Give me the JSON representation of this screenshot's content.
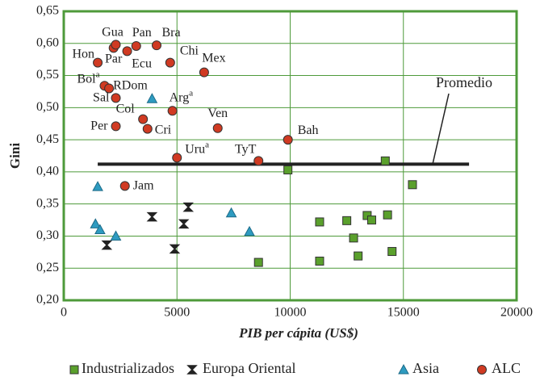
{
  "chart_data": {
    "type": "scatter",
    "xlabel": "PIB per cápita (US$)",
    "ylabel": "Gini",
    "xlim": [
      0,
      20000
    ],
    "ylim": [
      0.2,
      0.65
    ],
    "xticks": [
      0,
      5000,
      10000,
      15000,
      20000
    ],
    "yticks": [
      {
        "value": 0.2,
        "label": "0,20"
      },
      {
        "value": 0.25,
        "label": "0,25"
      },
      {
        "value": 0.3,
        "label": "0,30"
      },
      {
        "value": 0.35,
        "label": "0,35"
      },
      {
        "value": 0.4,
        "label": "0,40"
      },
      {
        "value": 0.45,
        "label": "0,45"
      },
      {
        "value": 0.5,
        "label": "0,50"
      },
      {
        "value": 0.55,
        "label": "0,55"
      },
      {
        "value": 0.6,
        "label": "0,60"
      },
      {
        "value": 0.65,
        "label": "0,65"
      }
    ],
    "grid": true,
    "legend": "bottom",
    "average": {
      "label": "Promedio",
      "value": 0.412,
      "x": [
        1500,
        17900
      ]
    },
    "series": [
      {
        "name": "Industrializados",
        "marker": "square",
        "color": "#5aa02c",
        "x": [
          9900,
          14200,
          15400,
          8600,
          11300,
          12500,
          13400,
          13600,
          12800,
          14300,
          13000,
          11300,
          14500
        ],
        "values": [
          0.403,
          0.417,
          0.38,
          0.259,
          0.322,
          0.324,
          0.332,
          0.325,
          0.297,
          0.333,
          0.269,
          0.261,
          0.276
        ]
      },
      {
        "name": "Europa Oriental",
        "marker": "hourglass",
        "color": "#222222",
        "x": [
          1900,
          3900,
          4900,
          5300,
          5500
        ],
        "values": [
          0.286,
          0.33,
          0.28,
          0.319,
          0.345
        ]
      },
      {
        "name": "Asia",
        "marker": "triangle",
        "color": "#2e9bc0",
        "x": [
          1500,
          3900,
          1400,
          1600,
          2300,
          7400,
          8200
        ],
        "values": [
          0.377,
          0.514,
          0.319,
          0.31,
          0.3,
          0.336,
          0.307
        ]
      },
      {
        "name": "ALC",
        "marker": "circle",
        "color": "#d03a22",
        "x": [
          1500,
          2200,
          2300,
          2800,
          3200,
          4100,
          4700,
          6200,
          1800,
          2000,
          2300,
          4800,
          3500,
          3700,
          2300,
          6800,
          9900,
          5000,
          8600,
          2700
        ],
        "values": [
          0.57,
          0.593,
          0.598,
          0.588,
          0.596,
          0.597,
          0.57,
          0.555,
          0.534,
          0.53,
          0.515,
          0.495,
          0.482,
          0.467,
          0.471,
          0.468,
          0.45,
          0.422,
          0.417,
          0.378
        ],
        "labels": [
          "Hon",
          "Par",
          "Gua",
          "Ecu",
          "Pan",
          "Bra",
          "Chi",
          "Mex",
          "Bol",
          "RDom",
          "Sal",
          "Arg",
          "Col",
          "Cri",
          "Per",
          "Ven",
          "Bah",
          "Uru",
          "TyT",
          "Jam"
        ],
        "label_notes": {
          "8": "a",
          "11": "a",
          "17": "a"
        }
      }
    ]
  }
}
